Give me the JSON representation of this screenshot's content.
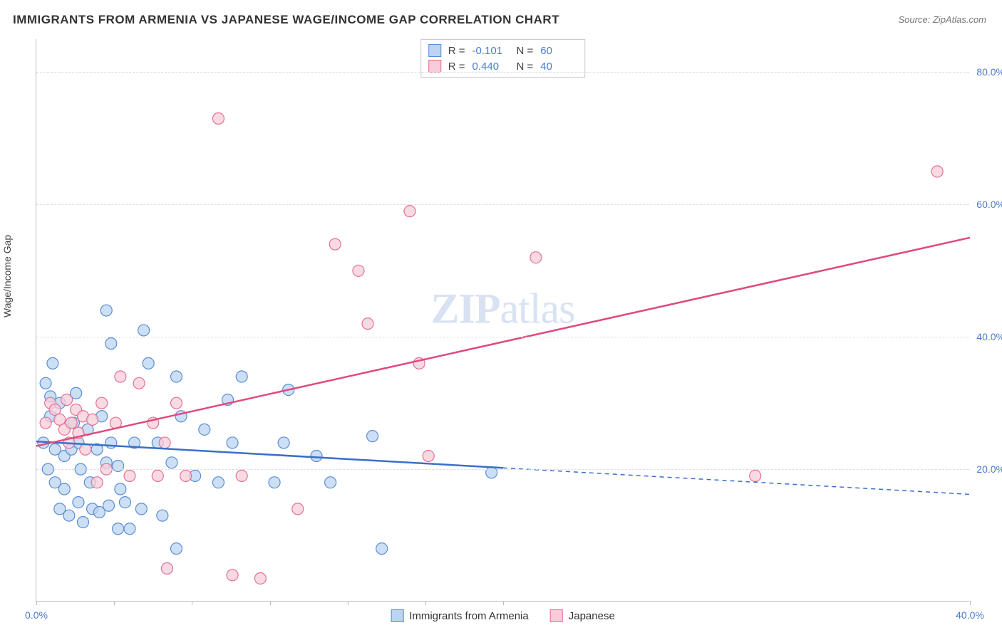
{
  "title": "IMMIGRANTS FROM ARMENIA VS JAPANESE WAGE/INCOME GAP CORRELATION CHART",
  "source": "Source: ZipAtlas.com",
  "y_axis_label": "Wage/Income Gap",
  "watermark_bold": "ZIP",
  "watermark_rest": "atlas",
  "chart": {
    "type": "scatter",
    "background_color": "#ffffff",
    "grid_color": "#dddddd",
    "grid_dash": "4,4",
    "axis_color": "#bbbbbb",
    "tick_label_color": "#4a7bd0",
    "text_color": "#333333",
    "y_axis_side": "right",
    "x_range": [
      0,
      40
    ],
    "y_range": [
      0,
      85
    ],
    "y_ticks": [
      {
        "value": 20,
        "label": "20.0%"
      },
      {
        "value": 40,
        "label": "40.0%"
      },
      {
        "value": 60,
        "label": "60.0%"
      },
      {
        "value": 80,
        "label": "80.0%"
      }
    ],
    "x_tick_positions": [
      0,
      3.33,
      6.67,
      10,
      13.33,
      16.67,
      20,
      40
    ],
    "x_tick_labels": [
      {
        "value": 0,
        "label": "0.0%"
      },
      {
        "value": 40,
        "label": "40.0%"
      }
    ],
    "series": [
      {
        "key": "armenia",
        "label": "Immigrants from Armenia",
        "marker_fill": "#bcd4f0",
        "marker_stroke": "#5a8dd6",
        "marker_radius": 8,
        "marker_opacity": 0.75,
        "trend_color": "#3a6fc7",
        "trend_width": 2.5,
        "trend_solid": {
          "x1": 0,
          "y1": 24.2,
          "x2": 20,
          "y2": 20.2
        },
        "trend_dash": {
          "x1": 20,
          "y1": 20.2,
          "x2": 40,
          "y2": 16.2
        },
        "R_label": "R =",
        "R_value": "-0.101",
        "N_label": "N =",
        "N_value": "60",
        "points": [
          {
            "x": 0.3,
            "y": 24
          },
          {
            "x": 0.4,
            "y": 33
          },
          {
            "x": 0.5,
            "y": 20
          },
          {
            "x": 0.6,
            "y": 28
          },
          {
            "x": 0.6,
            "y": 31
          },
          {
            "x": 0.7,
            "y": 36
          },
          {
            "x": 0.8,
            "y": 18
          },
          {
            "x": 0.8,
            "y": 23
          },
          {
            "x": 1.0,
            "y": 14
          },
          {
            "x": 1.0,
            "y": 30
          },
          {
            "x": 1.2,
            "y": 17
          },
          {
            "x": 1.2,
            "y": 22
          },
          {
            "x": 1.4,
            "y": 13
          },
          {
            "x": 1.5,
            "y": 23
          },
          {
            "x": 1.6,
            "y": 27
          },
          {
            "x": 1.7,
            "y": 31.5
          },
          {
            "x": 1.8,
            "y": 15
          },
          {
            "x": 1.8,
            "y": 24
          },
          {
            "x": 1.9,
            "y": 20
          },
          {
            "x": 2.0,
            "y": 12
          },
          {
            "x": 2.2,
            "y": 26
          },
          {
            "x": 2.3,
            "y": 18
          },
          {
            "x": 2.4,
            "y": 14
          },
          {
            "x": 2.6,
            "y": 23
          },
          {
            "x": 2.7,
            "y": 13.5
          },
          {
            "x": 2.8,
            "y": 28
          },
          {
            "x": 3.0,
            "y": 21
          },
          {
            "x": 3.0,
            "y": 44
          },
          {
            "x": 3.1,
            "y": 14.5
          },
          {
            "x": 3.2,
            "y": 39
          },
          {
            "x": 3.2,
            "y": 24
          },
          {
            "x": 3.5,
            "y": 11
          },
          {
            "x": 3.5,
            "y": 20.5
          },
          {
            "x": 3.6,
            "y": 17
          },
          {
            "x": 3.8,
            "y": 15
          },
          {
            "x": 4.0,
            "y": 11
          },
          {
            "x": 4.2,
            "y": 24
          },
          {
            "x": 4.5,
            "y": 14
          },
          {
            "x": 4.6,
            "y": 41
          },
          {
            "x": 4.8,
            "y": 36
          },
          {
            "x": 5.2,
            "y": 24
          },
          {
            "x": 5.4,
            "y": 13
          },
          {
            "x": 5.8,
            "y": 21
          },
          {
            "x": 6.0,
            "y": 8
          },
          {
            "x": 6.0,
            "y": 34
          },
          {
            "x": 6.2,
            "y": 28
          },
          {
            "x": 6.8,
            "y": 19
          },
          {
            "x": 7.2,
            "y": 26
          },
          {
            "x": 7.8,
            "y": 18
          },
          {
            "x": 8.2,
            "y": 30.5
          },
          {
            "x": 8.4,
            "y": 24
          },
          {
            "x": 8.8,
            "y": 34
          },
          {
            "x": 10.2,
            "y": 18
          },
          {
            "x": 10.6,
            "y": 24
          },
          {
            "x": 10.8,
            "y": 32
          },
          {
            "x": 12.0,
            "y": 22
          },
          {
            "x": 12.6,
            "y": 18
          },
          {
            "x": 14.4,
            "y": 25
          },
          {
            "x": 14.8,
            "y": 8
          },
          {
            "x": 19.5,
            "y": 19.5
          }
        ]
      },
      {
        "key": "japanese",
        "label": "Japanese",
        "marker_fill": "#f7cdd9",
        "marker_stroke": "#e37094",
        "marker_radius": 8,
        "marker_opacity": 0.75,
        "trend_color": "#e04a7a",
        "trend_width": 2.5,
        "trend_solid": {
          "x1": 0,
          "y1": 23.5,
          "x2": 40,
          "y2": 55
        },
        "trend_dash": null,
        "R_label": "R =",
        "R_value": "0.440",
        "N_label": "N =",
        "N_value": "40",
        "points": [
          {
            "x": 0.4,
            "y": 27
          },
          {
            "x": 0.6,
            "y": 30
          },
          {
            "x": 0.8,
            "y": 29
          },
          {
            "x": 1.0,
            "y": 27.5
          },
          {
            "x": 1.2,
            "y": 26
          },
          {
            "x": 1.3,
            "y": 30.5
          },
          {
            "x": 1.4,
            "y": 24
          },
          {
            "x": 1.5,
            "y": 27
          },
          {
            "x": 1.7,
            "y": 29
          },
          {
            "x": 1.8,
            "y": 25.5
          },
          {
            "x": 2.0,
            "y": 28
          },
          {
            "x": 2.1,
            "y": 23
          },
          {
            "x": 2.4,
            "y": 27.5
          },
          {
            "x": 2.6,
            "y": 18
          },
          {
            "x": 2.8,
            "y": 30
          },
          {
            "x": 3.0,
            "y": 20
          },
          {
            "x": 3.4,
            "y": 27
          },
          {
            "x": 3.6,
            "y": 34
          },
          {
            "x": 4.0,
            "y": 19
          },
          {
            "x": 4.4,
            "y": 33
          },
          {
            "x": 5.0,
            "y": 27
          },
          {
            "x": 5.2,
            "y": 19
          },
          {
            "x": 5.5,
            "y": 24
          },
          {
            "x": 5.6,
            "y": 5
          },
          {
            "x": 6.0,
            "y": 30
          },
          {
            "x": 6.4,
            "y": 19
          },
          {
            "x": 7.8,
            "y": 73
          },
          {
            "x": 8.4,
            "y": 4
          },
          {
            "x": 8.8,
            "y": 19
          },
          {
            "x": 9.6,
            "y": 3.5
          },
          {
            "x": 11.2,
            "y": 14
          },
          {
            "x": 12.8,
            "y": 54
          },
          {
            "x": 13.8,
            "y": 50
          },
          {
            "x": 14.2,
            "y": 42
          },
          {
            "x": 16.0,
            "y": 59
          },
          {
            "x": 16.4,
            "y": 36
          },
          {
            "x": 16.8,
            "y": 22
          },
          {
            "x": 21.4,
            "y": 52
          },
          {
            "x": 30.8,
            "y": 19
          },
          {
            "x": 38.6,
            "y": 65
          }
        ]
      }
    ]
  },
  "fonts": {
    "title_size": 17,
    "axis_label_size": 14,
    "tick_label_size": 14,
    "legend_size": 15,
    "watermark_size": 60
  }
}
